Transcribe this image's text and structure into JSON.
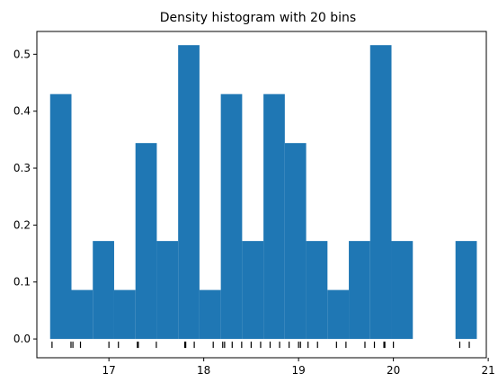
{
  "chart_data": {
    "type": "bar",
    "title": "Density histogram with 20 bins",
    "xlabel": "",
    "ylabel": "",
    "xlim": [
      16.24,
      20.98
    ],
    "ylim": [
      -0.033,
      0.54
    ],
    "bar_color": "#1f77b4",
    "bin_edges": [
      16.38,
      16.605,
      16.83,
      17.055,
      17.28,
      17.505,
      17.73,
      17.955,
      18.18,
      18.405,
      18.63,
      18.855,
      19.08,
      19.305,
      19.53,
      19.755,
      19.98,
      20.205,
      20.43,
      20.655,
      20.88
    ],
    "values": [
      0.43,
      0.086,
      0.172,
      0.086,
      0.344,
      0.172,
      0.516,
      0.086,
      0.43,
      0.172,
      0.43,
      0.344,
      0.172,
      0.086,
      0.172,
      0.516,
      0.172,
      0.0,
      0.0,
      0.172
    ],
    "x_ticks": [
      17,
      18,
      19,
      20,
      21
    ],
    "x_tick_labels": [
      "17",
      "18",
      "19",
      "20",
      "21"
    ],
    "y_ticks": [
      0.0,
      0.1,
      0.2,
      0.3,
      0.4,
      0.5
    ],
    "y_tick_labels": [
      "0.0",
      "0.1",
      "0.2",
      "0.3",
      "0.4",
      "0.5"
    ],
    "rug": [
      16.4,
      16.6,
      16.62,
      16.7,
      17.0,
      17.1,
      17.3,
      17.31,
      17.5,
      17.8,
      17.81,
      17.9,
      18.1,
      18.2,
      18.22,
      18.3,
      18.4,
      18.5,
      18.6,
      18.7,
      18.8,
      18.9,
      19.0,
      19.02,
      19.1,
      19.2,
      19.4,
      19.5,
      19.7,
      19.8,
      19.9,
      19.91,
      20.0,
      20.7,
      20.8
    ],
    "grid": false
  }
}
